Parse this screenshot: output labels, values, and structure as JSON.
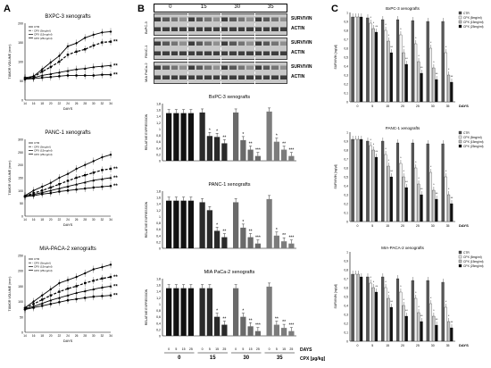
{
  "figure": {
    "panel_a": "A",
    "panel_b": "B",
    "panel_c": "C"
  },
  "panel_a_charts": [
    {
      "title": "BXPC-3 xenografts",
      "ylabel": "TUMOR VOLUME (mm³)",
      "xlabel": "DAYS",
      "legend": [
        "CTR",
        "CPX (5mg/ml)",
        "CPX (15mg/ml)",
        "CPX (25mg/ml)"
      ],
      "annotations": [
        "**",
        "**",
        "**"
      ]
    },
    {
      "title": "PANC-1 xenografts",
      "ylabel": "TUMOR VOLUME (mm³)",
      "xlabel": "DAYS",
      "legend": [
        "CTR",
        "CPX (5mg/ml)",
        "CPX (15mg/ml)",
        "CPX (25mg/ml)"
      ],
      "annotations": [
        "**",
        "**",
        "**"
      ]
    },
    {
      "title": "MIA-PACA-2 xenografts",
      "ylabel": "TUMOR VOLUME (mm³)",
      "xlabel": "DAYS",
      "legend": [
        "CTR",
        "CPX (5mg/ml)",
        "CPX (15mg/ml)",
        "CPX (25mg/ml)"
      ],
      "annotations": [
        "**",
        "**",
        "**"
      ]
    }
  ],
  "blot": {
    "days": [
      "0",
      "15",
      "30",
      "35"
    ],
    "rows": [
      {
        "cell": "BxPC-3",
        "bands": [
          "SURVIVIN",
          "ACTIN"
        ]
      },
      {
        "cell": "PANC-1",
        "bands": [
          "SURVIVIN",
          "ACTIN"
        ]
      },
      {
        "cell": "MIA PaCa-2",
        "bands": [
          "SURVIVIN",
          "ACTIN"
        ]
      }
    ],
    "cpx_label": "CPX [µg/kg]"
  },
  "bottom_axis": {
    "days_label": "DAYS",
    "day_groups": [
      "0",
      "15",
      "30",
      "35"
    ],
    "dose_ticks": [
      "0",
      "5",
      "15",
      "25"
    ],
    "cpx_label": "CPX [µg/kg]"
  },
  "chart_data": [
    {
      "type": "line",
      "title": "BXPC-3 xenografts",
      "ylabel": "TUMOR VOLUME (mm³)",
      "xlabel": "DAYS",
      "x": [
        14,
        16,
        18,
        20,
        22,
        24,
        26,
        28,
        30,
        32,
        34
      ],
      "xticks": [
        "14",
        "16",
        "18",
        "20",
        "22",
        "24",
        "26",
        "28",
        "30",
        "32",
        "34"
      ],
      "ylim": [
        0,
        200
      ],
      "yticks": [
        "0",
        "50",
        "100",
        "150",
        "200"
      ],
      "series": [
        {
          "name": "CTR",
          "values": [
            58,
            62,
            80,
            98,
            115,
            140,
            148,
            162,
            170,
            176,
            178
          ]
        },
        {
          "name": "CPX (5mg/ml)",
          "values": [
            58,
            60,
            74,
            86,
            100,
            118,
            126,
            132,
            142,
            150,
            152
          ]
        },
        {
          "name": "CPX (15mg/ml)",
          "values": [
            56,
            58,
            64,
            68,
            72,
            76,
            80,
            82,
            86,
            88,
            90
          ]
        },
        {
          "name": "CPX (25mg/ml)",
          "values": [
            54,
            56,
            58,
            60,
            62,
            64,
            64,
            64,
            64,
            66,
            66
          ]
        }
      ]
    },
    {
      "type": "line",
      "title": "PANC-1 xenografts",
      "ylabel": "TUMOR VOLUME (mm³)",
      "xlabel": "DAYS",
      "x": [
        14,
        16,
        18,
        20,
        22,
        24,
        26,
        28,
        30,
        32,
        34
      ],
      "xticks": [
        "14",
        "16",
        "18",
        "20",
        "22",
        "24",
        "26",
        "28",
        "30",
        "32",
        "34"
      ],
      "ylim": [
        0,
        300
      ],
      "yticks": [
        "0",
        "50",
        "100",
        "150",
        "200",
        "250",
        "300"
      ],
      "series": [
        {
          "name": "CTR",
          "values": [
            80,
            100,
            115,
            130,
            150,
            165,
            185,
            200,
            215,
            230,
            240
          ]
        },
        {
          "name": "CPX (5mg/ml)",
          "values": [
            78,
            90,
            100,
            112,
            125,
            138,
            150,
            160,
            170,
            180,
            185
          ]
        },
        {
          "name": "CPX (15mg/ml)",
          "values": [
            78,
            85,
            92,
            100,
            108,
            116,
            124,
            132,
            140,
            145,
            150
          ]
        },
        {
          "name": "CPX (25mg/ml)",
          "values": [
            76,
            80,
            86,
            90,
            96,
            100,
            104,
            108,
            112,
            115,
            118
          ]
        }
      ]
    },
    {
      "type": "line",
      "title": "MIA-PACA-2 xenografts",
      "ylabel": "TUMOR VOLUME (mm³)",
      "xlabel": "DAYS",
      "x": [
        14,
        16,
        18,
        20,
        22,
        24,
        26,
        28,
        30,
        32,
        34
      ],
      "xticks": [
        "14",
        "16",
        "18",
        "20",
        "22",
        "24",
        "26",
        "28",
        "30",
        "32",
        "34"
      ],
      "ylim": [
        0,
        250
      ],
      "yticks": [
        "0",
        "50",
        "100",
        "150",
        "200",
        "250"
      ],
      "series": [
        {
          "name": "CTR",
          "values": [
            80,
            100,
            120,
            140,
            160,
            170,
            180,
            192,
            205,
            212,
            220
          ]
        },
        {
          "name": "CPX (5mg/ml)",
          "values": [
            78,
            92,
            106,
            120,
            132,
            142,
            150,
            160,
            168,
            175,
            180
          ]
        },
        {
          "name": "CPX (15mg/ml)",
          "values": [
            76,
            84,
            94,
            104,
            112,
            120,
            128,
            134,
            140,
            146,
            150
          ]
        },
        {
          "name": "CPX (25mg/ml)",
          "values": [
            74,
            80,
            86,
            92,
            98,
            104,
            108,
            112,
            116,
            118,
            120
          ]
        }
      ]
    },
    {
      "type": "bar",
      "title": "BxPC-3 xenografts",
      "ylabel": "RELATIVE EXPRESSION",
      "ylim": [
        0,
        1.8
      ],
      "yticks": [
        "0",
        "0,2",
        "0,4",
        "0,6",
        "0,8",
        "1",
        "1,2",
        "1,4",
        "1,6",
        "1,8"
      ],
      "categories": [
        "0",
        "5",
        "15",
        "25",
        "0",
        "5",
        "15",
        "25",
        "0",
        "5",
        "15",
        "25",
        "0",
        "5",
        "15",
        "25"
      ],
      "values": [
        1.5,
        1.5,
        1.5,
        1.5,
        1.52,
        0.78,
        0.75,
        0.55,
        1.52,
        0.65,
        0.35,
        0.15,
        1.55,
        0.6,
        0.35,
        0.15
      ],
      "stars": [
        "",
        "",
        "",
        "",
        "",
        "*",
        "*",
        "**",
        "",
        "*",
        "**",
        "***",
        "",
        "*",
        "**",
        "***"
      ]
    },
    {
      "type": "bar",
      "title": "PANC-1 xenografts",
      "ylabel": "RELATIVE EXPRESSION",
      "ylim": [
        0,
        1.8
      ],
      "yticks": [
        "0",
        "0,2",
        "0,4",
        "0,6",
        "0,8",
        "1",
        "1,2",
        "1,4",
        "1,6",
        "1,8"
      ],
      "categories": [
        "0",
        "5",
        "15",
        "25",
        "0",
        "5",
        "15",
        "25",
        "0",
        "5",
        "15",
        "25",
        "0",
        "5",
        "15",
        "25"
      ],
      "values": [
        1.5,
        1.5,
        1.5,
        1.5,
        1.45,
        1.2,
        0.55,
        0.35,
        1.45,
        0.65,
        0.35,
        0.15,
        1.55,
        0.4,
        0.22,
        0.15
      ],
      "stars": [
        "",
        "",
        "",
        "",
        "",
        "",
        "*",
        "**",
        "",
        "*",
        "**",
        "***",
        "",
        "*",
        "**",
        "***"
      ]
    },
    {
      "type": "bar",
      "title": "MIA PaCa-2 xenografts",
      "ylabel": "RELATIVE EXPRESSION",
      "ylim": [
        0,
        1.8
      ],
      "yticks": [
        "0",
        "0,2",
        "0,4",
        "0,6",
        "0,8",
        "1",
        "1,2",
        "1,4",
        "1,6",
        "1,8"
      ],
      "categories": [
        "0",
        "5",
        "15",
        "25",
        "0",
        "5",
        "15",
        "25",
        "0",
        "5",
        "15",
        "25",
        "0",
        "5",
        "15",
        "25"
      ],
      "values": [
        1.5,
        1.5,
        1.5,
        1.5,
        1.5,
        1.5,
        0.6,
        0.35,
        1.5,
        0.6,
        0.3,
        0.15,
        1.55,
        0.35,
        0.25,
        0.15
      ],
      "stars": [
        "",
        "",
        "",
        "",
        "",
        "",
        "*",
        "**",
        "",
        "*",
        "**",
        "***",
        "",
        "**",
        "**",
        "***"
      ]
    },
    {
      "type": "bar",
      "title": "BxPC-3 xenografts",
      "ylabel": "SURVIVIN [ng/µl]",
      "xlabel": "DAYS",
      "ylim": [
        0,
        1
      ],
      "yticks": [
        "0",
        "0,1",
        "0,2",
        "0,3",
        "0,4",
        "0,5",
        "0,6",
        "0,7",
        "0,8",
        "0,9",
        "1"
      ],
      "categories": [
        "0",
        "5",
        "15",
        "20",
        "25",
        "30",
        "35"
      ],
      "legend": [
        "CTR",
        "CPX (5mg/ml)",
        "CPX (15mg/ml)",
        "CPX (25mg/ml)"
      ],
      "series": [
        {
          "name": "CTR",
          "values": [
            0.95,
            0.94,
            0.92,
            0.92,
            0.91,
            0.9,
            0.9
          ]
        },
        {
          "name": "CPX (5mg/ml)",
          "values": [
            0.95,
            0.88,
            0.8,
            0.75,
            0.65,
            0.6,
            0.55
          ]
        },
        {
          "name": "CPX (15mg/ml)",
          "values": [
            0.95,
            0.82,
            0.68,
            0.55,
            0.45,
            0.38,
            0.3
          ]
        },
        {
          "name": "CPX (25mg/ml)",
          "values": [
            0.95,
            0.78,
            0.55,
            0.42,
            0.32,
            0.25,
            0.22
          ]
        }
      ]
    },
    {
      "type": "bar",
      "title": "PANC-1 xenografts",
      "ylabel": "SURVIVIN [ng/µl]",
      "xlabel": "DAYS",
      "ylim": [
        0,
        1
      ],
      "yticks": [
        "0",
        "0,1",
        "0,2",
        "0,3",
        "0,4",
        "0,5",
        "0,6",
        "0,7",
        "0,8",
        "0,9",
        "1"
      ],
      "categories": [
        "0",
        "5",
        "15",
        "20",
        "25",
        "30",
        "35"
      ],
      "legend": [
        "CTR",
        "CPX (5mg/ml)",
        "CPX (15mg/ml)",
        "CPX (25mg/ml)"
      ],
      "series": [
        {
          "name": "CTR",
          "values": [
            0.92,
            0.9,
            0.9,
            0.88,
            0.88,
            0.87,
            0.87
          ]
        },
        {
          "name": "CPX (5mg/ml)",
          "values": [
            0.92,
            0.85,
            0.75,
            0.65,
            0.6,
            0.55,
            0.5
          ]
        },
        {
          "name": "CPX (15mg/ml)",
          "values": [
            0.92,
            0.8,
            0.62,
            0.5,
            0.42,
            0.35,
            0.3
          ]
        },
        {
          "name": "CPX (25mg/ml)",
          "values": [
            0.92,
            0.72,
            0.5,
            0.38,
            0.3,
            0.25,
            0.2
          ]
        }
      ]
    },
    {
      "type": "bar",
      "title": "MIA-PACA-2 xenografts",
      "ylabel": "SURVIVIN [ng/µl]",
      "xlabel": "DAYS",
      "ylim": [
        0,
        1
      ],
      "yticks": [
        "0",
        "0,1",
        "0,2",
        "0,3",
        "0,4",
        "0,5",
        "0,6",
        "0,7",
        "0,8",
        "0,9",
        "1"
      ],
      "categories": [
        "0",
        "5",
        "15",
        "20",
        "25",
        "30",
        "35"
      ],
      "legend": [
        "CTR",
        "CPX (5mg/ml)",
        "CPX (15mg/ml)",
        "CPX (25mg/ml)"
      ],
      "series": [
        {
          "name": "CTR",
          "values": [
            0.75,
            0.72,
            0.72,
            0.7,
            0.68,
            0.68,
            0.66
          ]
        },
        {
          "name": "CPX (5mg/ml)",
          "values": [
            0.75,
            0.65,
            0.6,
            0.55,
            0.48,
            0.42,
            0.38
          ]
        },
        {
          "name": "CPX (15mg/ml)",
          "values": [
            0.75,
            0.6,
            0.48,
            0.4,
            0.32,
            0.28,
            0.22
          ]
        },
        {
          "name": "CPX (25mg/ml)",
          "values": [
            0.72,
            0.55,
            0.38,
            0.28,
            0.22,
            0.18,
            0.15
          ]
        }
      ]
    }
  ]
}
